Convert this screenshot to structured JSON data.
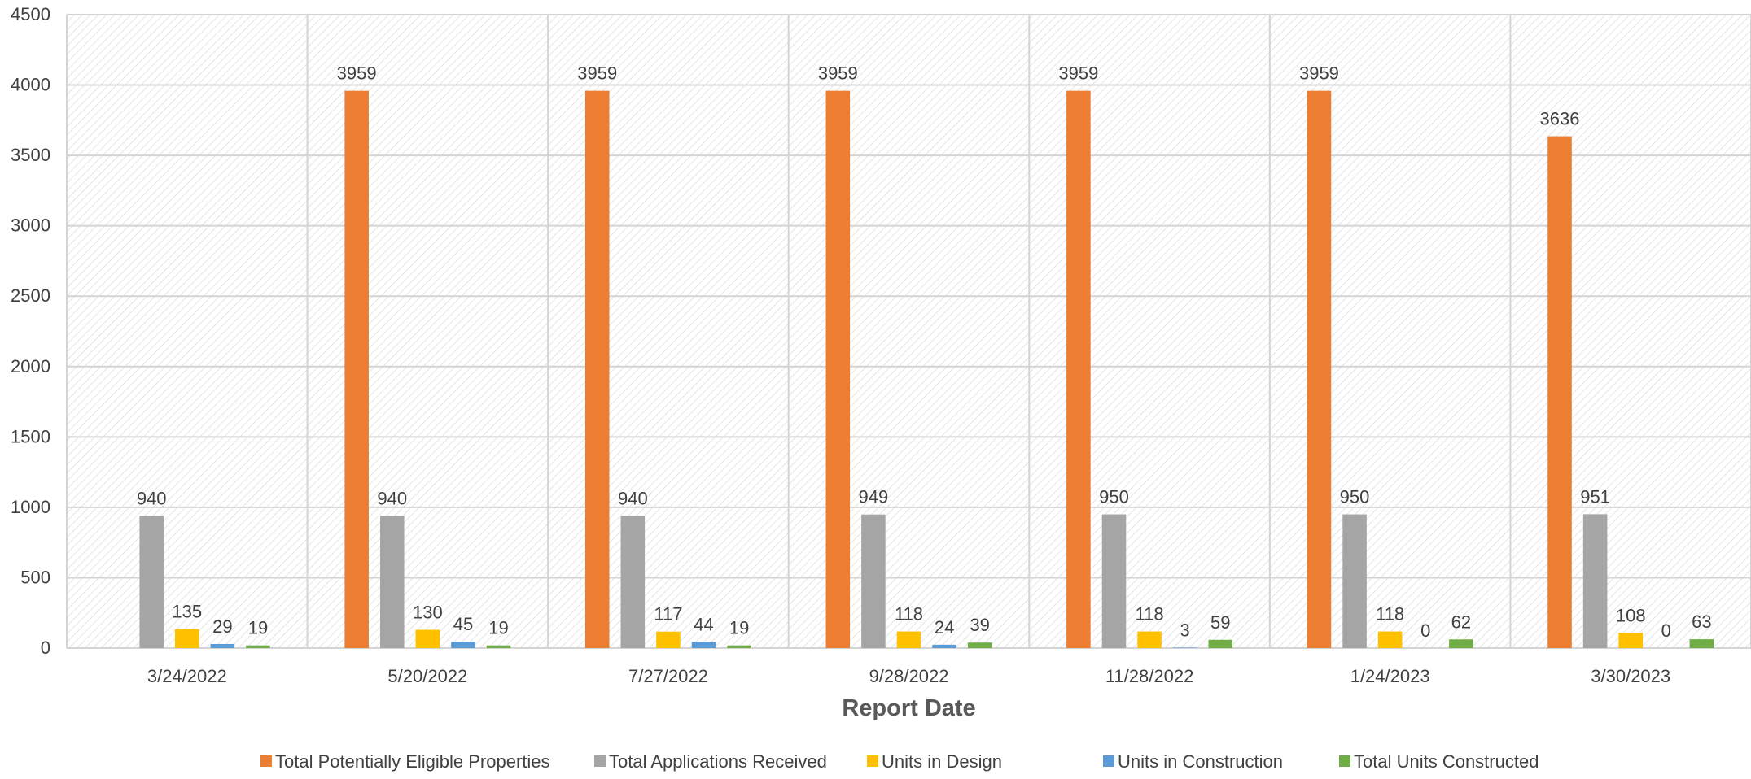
{
  "chart_data": {
    "type": "bar",
    "title": "",
    "xlabel": "Report Date",
    "ylabel": "",
    "ylim": [
      0,
      4500
    ],
    "yticks": [
      0,
      500,
      1000,
      1500,
      2000,
      2500,
      3000,
      3500,
      4000,
      4500
    ],
    "grid": true,
    "legend_position": "bottom",
    "categories": [
      "3/24/2022",
      "5/20/2022",
      "7/27/2022",
      "9/28/2022",
      "11/28/2022",
      "1/24/2023",
      "3/30/2023"
    ],
    "series": [
      {
        "name": "Total Potentially Eligible Properties",
        "color": "#ED7D31",
        "values": [
          null,
          3959,
          3959,
          3959,
          3959,
          3959,
          3636
        ]
      },
      {
        "name": "Total Applications Received",
        "color": "#A5A5A5",
        "values": [
          940,
          940,
          940,
          949,
          950,
          950,
          951
        ]
      },
      {
        "name": "Units in Design",
        "color": "#FFC000",
        "values": [
          135,
          130,
          117,
          118,
          118,
          118,
          108
        ]
      },
      {
        "name": "Units in Construction",
        "color": "#5B9BD5",
        "values": [
          29,
          45,
          44,
          24,
          3,
          0,
          0
        ]
      },
      {
        "name": "Total Units Constructed",
        "color": "#70AD47",
        "values": [
          19,
          19,
          19,
          39,
          59,
          62,
          63
        ]
      }
    ]
  }
}
